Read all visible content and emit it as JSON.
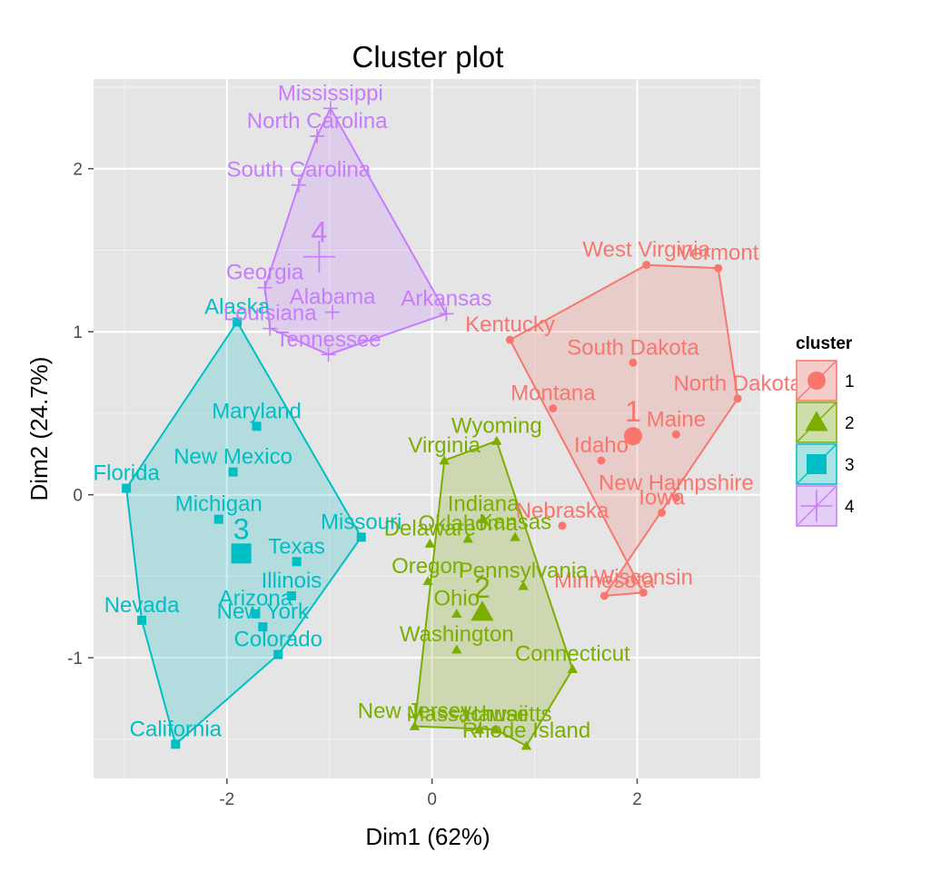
{
  "chart_data": {
    "type": "scatter",
    "title": "Cluster plot",
    "xlabel": "Dim1 (62%)",
    "ylabel": "Dim2 (24.7%)",
    "xlim": [
      -3.3,
      3.2
    ],
    "ylim": [
      -1.74,
      2.55
    ],
    "xticks": [
      -2,
      0,
      2
    ],
    "yticks": [
      -1,
      0,
      1,
      2
    ],
    "xtick_labels": [
      "-2",
      "0",
      "2"
    ],
    "ytick_labels": [
      "-1",
      "0",
      "1",
      "2"
    ],
    "grid": true,
    "legend": {
      "title": "cluster",
      "position": "right"
    },
    "clusters": [
      {
        "name": "1",
        "color": "#F8766D",
        "marker": "circle",
        "centroid": {
          "x": 1.96,
          "y": 0.36,
          "label": "1"
        },
        "hull": [
          "West Virginia",
          "Vermont",
          "North Dakota",
          "Minnesota",
          "Wisconsin",
          "Kentucky"
        ],
        "points": [
          {
            "label": "West Virginia",
            "x": 2.09,
            "y": 1.41
          },
          {
            "label": "Vermont",
            "x": 2.79,
            "y": 1.39
          },
          {
            "label": "Kentucky",
            "x": 0.76,
            "y": 0.95
          },
          {
            "label": "South Dakota",
            "x": 1.96,
            "y": 0.81
          },
          {
            "label": "North Dakota",
            "x": 2.98,
            "y": 0.59
          },
          {
            "label": "Montana",
            "x": 1.18,
            "y": 0.53
          },
          {
            "label": "Maine",
            "x": 2.38,
            "y": 0.37
          },
          {
            "label": "Idaho",
            "x": 1.65,
            "y": 0.21
          },
          {
            "label": "New Hampshire",
            "x": 2.38,
            "y": -0.02
          },
          {
            "label": "Iowa",
            "x": 2.24,
            "y": -0.11
          },
          {
            "label": "Nebraska",
            "x": 1.27,
            "y": -0.19
          },
          {
            "label": "Wisconsin",
            "x": 2.06,
            "y": -0.6
          },
          {
            "label": "Minnesota",
            "x": 1.68,
            "y": -0.62
          }
        ]
      },
      {
        "name": "2",
        "color": "#7CAE00",
        "marker": "triangle",
        "centroid": {
          "x": 0.49,
          "y": -0.72,
          "label": "2"
        },
        "hull": [
          "Wyoming",
          "Connecticut",
          "Rhode Island",
          "Hawaii",
          "New Jersey",
          "Virginia"
        ],
        "points": [
          {
            "label": "Wyoming",
            "x": 0.63,
            "y": 0.33
          },
          {
            "label": "Virginia",
            "x": 0.12,
            "y": 0.21
          },
          {
            "label": "Indiana",
            "x": 0.5,
            "y": -0.15
          },
          {
            "label": "Oklahoma",
            "x": 0.35,
            "y": -0.27
          },
          {
            "label": "Kansas",
            "x": 0.81,
            "y": -0.26
          },
          {
            "label": "Delaware",
            "x": -0.02,
            "y": -0.3
          },
          {
            "label": "Oregon",
            "x": -0.04,
            "y": -0.53
          },
          {
            "label": "Pennsylvania",
            "x": 0.89,
            "y": -0.56
          },
          {
            "label": "Ohio",
            "x": 0.24,
            "y": -0.73
          },
          {
            "label": "Washington",
            "x": 0.24,
            "y": -0.95
          },
          {
            "label": "Connecticut",
            "x": 1.37,
            "y": -1.07
          },
          {
            "label": "New Jersey",
            "x": -0.17,
            "y": -1.42
          },
          {
            "label": "Massachusetts",
            "x": 0.46,
            "y": -1.44
          },
          {
            "label": "Hawaii",
            "x": 0.62,
            "y": -1.44
          },
          {
            "label": "Rhode Island",
            "x": 0.92,
            "y": -1.54
          }
        ]
      },
      {
        "name": "3",
        "color": "#00BFC4",
        "marker": "square",
        "centroid": {
          "x": -1.86,
          "y": -0.36,
          "label": "3"
        },
        "hull": [
          "Alaska",
          "Missouri",
          "Colorado",
          "California",
          "Nevada",
          "Florida"
        ],
        "points": [
          {
            "label": "Alaska",
            "x": -1.9,
            "y": 1.06
          },
          {
            "label": "Maryland",
            "x": -1.71,
            "y": 0.42
          },
          {
            "label": "New Mexico",
            "x": -1.94,
            "y": 0.14
          },
          {
            "label": "Florida",
            "x": -2.98,
            "y": 0.04
          },
          {
            "label": "Michigan",
            "x": -2.08,
            "y": -0.15
          },
          {
            "label": "Missouri",
            "x": -0.69,
            "y": -0.26
          },
          {
            "label": "Texas",
            "x": -1.32,
            "y": -0.41
          },
          {
            "label": "Illinois",
            "x": -1.37,
            "y": -0.62
          },
          {
            "label": "Arizona",
            "x": -1.72,
            "y": -0.73
          },
          {
            "label": "New York",
            "x": -1.65,
            "y": -0.81
          },
          {
            "label": "Nevada",
            "x": -2.83,
            "y": -0.77
          },
          {
            "label": "Colorado",
            "x": -1.5,
            "y": -0.98
          },
          {
            "label": "California",
            "x": -2.5,
            "y": -1.53
          }
        ]
      },
      {
        "name": "4",
        "color": "#C77CFF",
        "marker": "plus",
        "centroid": {
          "x": -1.1,
          "y": 1.46,
          "label": "4"
        },
        "hull": [
          "Mississippi",
          "Arkansas",
          "Tennessee",
          "Louisiana",
          "Georgia",
          "South Carolina",
          "North Carolina"
        ],
        "points": [
          {
            "label": "Mississippi",
            "x": -0.99,
            "y": 2.37
          },
          {
            "label": "North Carolina",
            "x": -1.12,
            "y": 2.2
          },
          {
            "label": "South Carolina",
            "x": -1.3,
            "y": 1.9
          },
          {
            "label": "Georgia",
            "x": -1.63,
            "y": 1.27
          },
          {
            "label": "Alabama",
            "x": -0.97,
            "y": 1.12
          },
          {
            "label": "Arkansas",
            "x": 0.14,
            "y": 1.11
          },
          {
            "label": "Louisiana",
            "x": -1.58,
            "y": 1.02
          },
          {
            "label": "Tennessee",
            "x": -1.01,
            "y": 0.86
          }
        ]
      }
    ]
  }
}
